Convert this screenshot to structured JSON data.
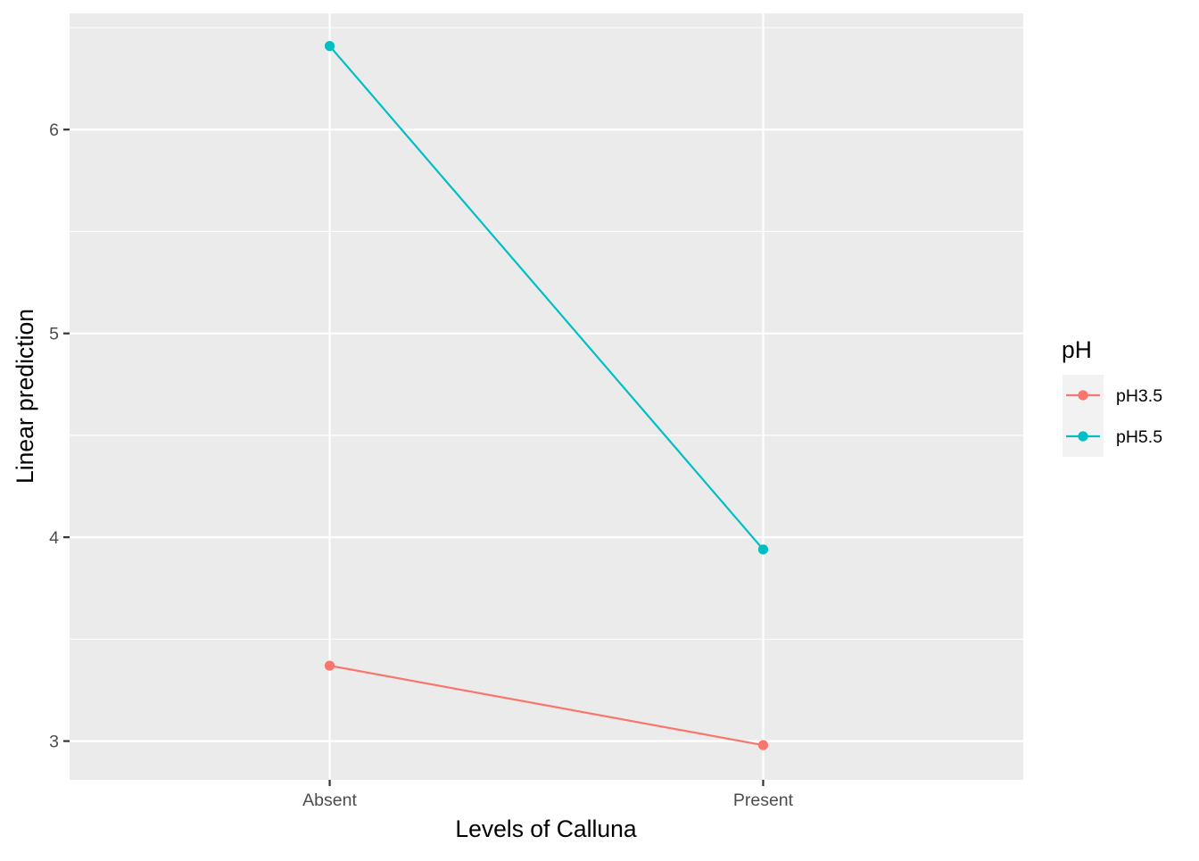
{
  "chart_data": {
    "type": "line",
    "title": "",
    "xlabel": "Levels of Calluna",
    "ylabel": "Linear prediction",
    "categories": [
      "Absent",
      "Present"
    ],
    "ylim": [
      2.81,
      6.57
    ],
    "y_major_ticks": [
      3,
      4,
      5,
      6
    ],
    "y_minor_ticks": [
      3.5,
      4.5,
      5.5,
      6.5
    ],
    "grid": true,
    "legend": {
      "title": "pH",
      "position": "right"
    },
    "series": [
      {
        "name": "pH3.5",
        "color": "#F8766D",
        "values": [
          3.37,
          2.98
        ]
      },
      {
        "name": "pH5.5",
        "color": "#00BFC4",
        "values": [
          6.41,
          3.94
        ]
      }
    ]
  },
  "panel_background": "#EBEBEB",
  "grid_color": "#FFFFFF"
}
